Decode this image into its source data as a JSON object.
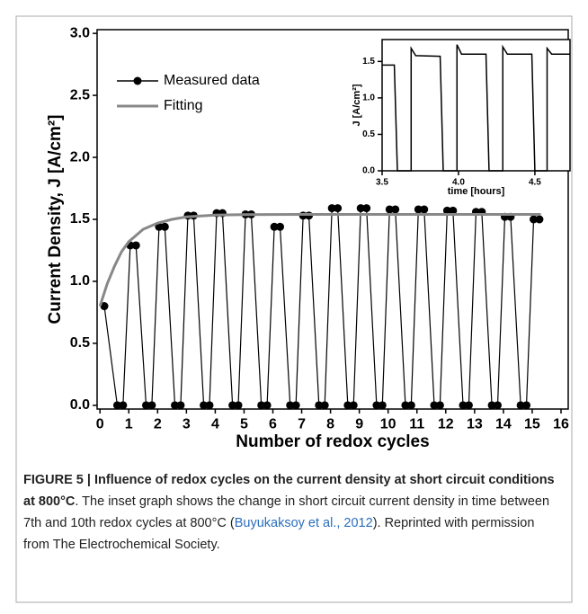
{
  "chart_data": [
    {
      "type": "line",
      "xlabel": "Number of redox cycles",
      "ylabel": "Current Density, J [A/cm²]",
      "xlim": [
        -0.1,
        16.25
      ],
      "ylim": [
        -0.03,
        3.03
      ],
      "xticks": [
        0,
        1,
        2,
        3,
        4,
        5,
        6,
        7,
        8,
        9,
        10,
        11,
        12,
        13,
        14,
        15,
        16
      ],
      "yticks": [
        {
          "value": 0,
          "label": "0.0"
        },
        {
          "value": 0.5,
          "label": "0.5"
        },
        {
          "value": 1,
          "label": "1.0"
        },
        {
          "value": 1.5,
          "label": "1.5"
        },
        {
          "value": 2,
          "label": "2.0"
        },
        {
          "value": 2.5,
          "label": "2.5"
        },
        {
          "value": 3,
          "label": "3.0"
        }
      ],
      "legend": "upper left",
      "series": [
        {
          "name": "Measured data",
          "color": "#000000",
          "marker": "circle",
          "x": [
            0.15,
            0.6,
            0.8,
            1.05,
            1.25,
            1.6,
            1.8,
            2.05,
            2.25,
            2.6,
            2.8,
            3.05,
            3.25,
            3.6,
            3.8,
            4.05,
            4.25,
            4.6,
            4.8,
            5.05,
            5.25,
            5.6,
            5.8,
            6.05,
            6.25,
            6.6,
            6.8,
            7.05,
            7.25,
            7.6,
            7.8,
            8.05,
            8.25,
            8.6,
            8.8,
            9.05,
            9.25,
            9.6,
            9.8,
            10.05,
            10.25,
            10.6,
            10.8,
            11.05,
            11.25,
            11.6,
            11.8,
            12.05,
            12.25,
            12.6,
            12.8,
            13.05,
            13.25,
            13.6,
            13.8,
            14.05,
            14.25,
            14.6,
            14.8,
            15.05,
            15.25
          ],
          "values": [
            0.8,
            0,
            0,
            1.29,
            1.29,
            0,
            0,
            1.44,
            1.44,
            0,
            0,
            1.53,
            1.53,
            0,
            0,
            1.55,
            1.55,
            0,
            0,
            1.54,
            1.54,
            0,
            0,
            1.44,
            1.44,
            0,
            0,
            1.53,
            1.53,
            0,
            0,
            1.59,
            1.59,
            0,
            0,
            1.59,
            1.59,
            0,
            0,
            1.58,
            1.58,
            0,
            0,
            1.58,
            1.58,
            0,
            0,
            1.57,
            1.57,
            0,
            0,
            1.56,
            1.56,
            0,
            0,
            1.52,
            1.52,
            0,
            0,
            1.5,
            1.5
          ]
        },
        {
          "name": "Fitting",
          "color": "#888888",
          "x": [
            0,
            0.25,
            0.5,
            0.75,
            1,
            1.5,
            2,
            2.5,
            3,
            4,
            5,
            7,
            10,
            15.3
          ],
          "values": [
            0.8,
            0.98,
            1.12,
            1.24,
            1.32,
            1.42,
            1.47,
            1.5,
            1.52,
            1.534,
            1.538,
            1.54,
            1.54,
            1.54
          ]
        }
      ]
    },
    {
      "type": "line",
      "xlabel": "time [hours]",
      "ylabel": "J [A/cm²]",
      "xlim": [
        3.5,
        4.73
      ],
      "ylim": [
        0,
        1.8
      ],
      "xticks": [
        {
          "value": 3.5,
          "label": "3.5"
        },
        {
          "value": 4,
          "label": "4.0"
        },
        {
          "value": 4.5,
          "label": "4.5"
        }
      ],
      "yticks": [
        {
          "value": 0,
          "label": "0.0"
        },
        {
          "value": 0.5,
          "label": "0.5"
        },
        {
          "value": 1,
          "label": "1.0"
        },
        {
          "value": 1.5,
          "label": "1.5"
        }
      ],
      "series": [
        {
          "color": "#000000",
          "x": [
            3.5,
            3.58,
            3.6,
            3.69,
            3.69,
            3.72,
            3.88,
            3.9,
            3.99,
            3.99,
            4.02,
            4.18,
            4.2,
            4.29,
            4.29,
            4.32,
            4.48,
            4.5,
            4.58,
            4.58,
            4.61,
            4.73
          ],
          "values": [
            1.45,
            1.45,
            0,
            0,
            1.68,
            1.58,
            1.57,
            0,
            0,
            1.73,
            1.6,
            1.6,
            0,
            0,
            1.7,
            1.6,
            1.6,
            0,
            0,
            1.68,
            1.6,
            1.6
          ]
        }
      ]
    }
  ],
  "caption": {
    "label": "FIGURE 5 | Influence of redox cycles on the current density at short circuit conditions at 800°C",
    "text": ". The inset graph shows the change in short circuit current density in time between 7th and 10th redox cycles at 800°C (",
    "citation": "Buyukaksoy et al., 2012",
    "text2": "). Reprinted with permission from The Electrochemical Society."
  }
}
